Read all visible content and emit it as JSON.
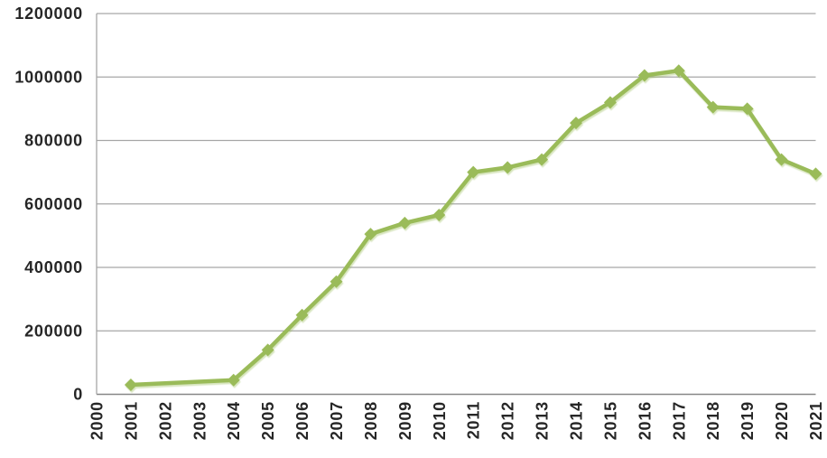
{
  "chart_data": {
    "type": "line",
    "title": "",
    "xlabel": "",
    "ylabel": "",
    "x_range": [
      2000,
      2021
    ],
    "x_tick_labels": [
      "2000",
      "2001",
      "2002",
      "2003",
      "2004",
      "2005",
      "2006",
      "2007",
      "2008",
      "2009",
      "2010",
      "2011",
      "2012",
      "2013",
      "2014",
      "2015",
      "2016",
      "2017",
      "2018",
      "2019",
      "2020",
      "2021"
    ],
    "ylim": [
      0,
      1200000
    ],
    "y_tick_step": 200000,
    "y_tick_labels": [
      "0",
      "200000",
      "400000",
      "600000",
      "800000",
      "1000000",
      "1200000"
    ],
    "grid": "horizontal",
    "legend": "none",
    "series": [
      {
        "color": "#9ABB59",
        "marker": "diamond",
        "points": [
          [
            2001,
            30000
          ],
          [
            2004,
            45000
          ],
          [
            2005,
            140000
          ],
          [
            2006,
            250000
          ],
          [
            2007,
            355000
          ],
          [
            2008,
            505000
          ],
          [
            2009,
            540000
          ],
          [
            2010,
            565000
          ],
          [
            2011,
            700000
          ],
          [
            2012,
            715000
          ],
          [
            2013,
            740000
          ],
          [
            2014,
            855000
          ],
          [
            2015,
            920000
          ],
          [
            2016,
            1005000
          ],
          [
            2017,
            1020000
          ],
          [
            2018,
            905000
          ],
          [
            2019,
            900000
          ],
          [
            2020,
            740000
          ],
          [
            2021,
            695000
          ]
        ]
      }
    ]
  },
  "style": {
    "grid_color": "#A6A6A6",
    "axis_color": "#878787",
    "tick_label_color": "#262626",
    "background": "#FFFFFF"
  }
}
